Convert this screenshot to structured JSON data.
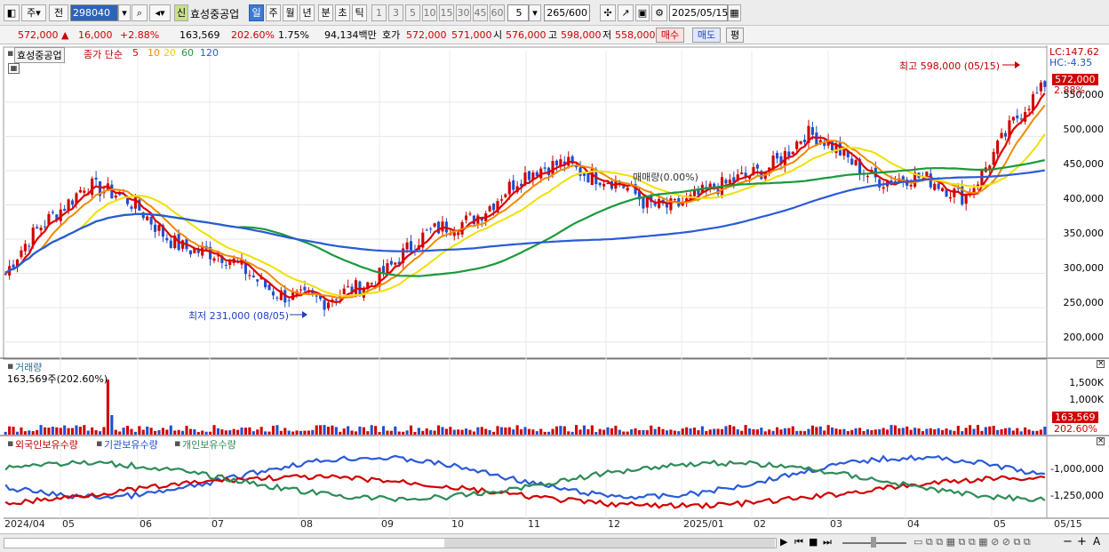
{
  "toolbar": {
    "period_type": "주",
    "compare": "전",
    "code": "298040",
    "credit_badge": "신",
    "name": "효성중공업",
    "periods": [
      "일",
      "주",
      "월",
      "년",
      "분",
      "초",
      "틱"
    ],
    "active_period": "일",
    "intervals": [
      "1",
      "3",
      "5",
      "10",
      "15",
      "30",
      "45",
      "60"
    ],
    "interval_input": "5",
    "count": "265",
    "count_total": "/600",
    "date": "2025/05/15"
  },
  "quote": {
    "price": "572,000",
    "change": "16,000",
    "change_pct": "+2.88%",
    "volume": "163,569",
    "volume_ratio": "202.60%",
    "turnover": "1.75%",
    "amount": "94,134백만",
    "quote_label": "호가",
    "ask": "572,000",
    "bid": "571,000",
    "open_label": "시",
    "open": "576,000",
    "high_label": "고",
    "high": "598,000",
    "low_label": "저",
    "low": "558,000",
    "buy_label": "매수",
    "sell_label": "매도",
    "eval_label": "평"
  },
  "price_panel": {
    "stock_tag": "효성중공업",
    "ma_label": "종가 단순",
    "ma_periods": [
      "5",
      "10",
      "20",
      "60",
      "120"
    ],
    "lc": "LC:147.62",
    "hc": "HC:-4.35",
    "price_tag": "572,000",
    "pct_tag": "2.88%",
    "high_annotation": "최고 598,000 (05/15)",
    "low_annotation": "최저 231,000 (08/05)",
    "mid_annotation": "매매량(0.00%)",
    "y_ticks": [
      "550,000",
      "500,000",
      "450,000",
      "400,000",
      "350,000",
      "300,000",
      "250,000",
      "200,000"
    ]
  },
  "volume_panel": {
    "title": "거래량",
    "current": "163,569주(202.60%)",
    "y_ticks": [
      "1,500K",
      "1,000K"
    ],
    "tag_value": "163,569",
    "tag_pct": "202.60%"
  },
  "holding_panel": {
    "legend": [
      "외국인보유수량",
      "기관보유수량",
      "개인보유수량"
    ],
    "y_ticks": [
      "-1,000,000",
      "-1,250,000"
    ]
  },
  "x_axis": [
    "2024/04",
    "05",
    "06",
    "07",
    "08",
    "09",
    "10",
    "11",
    "12",
    "2025/01",
    "02",
    "03",
    "04",
    "05",
    "05/15"
  ],
  "colors": {
    "up": "#d00000",
    "down": "#1f4fd0",
    "ma5": "#e00000",
    "ma10": "#f08a00",
    "ma20": "#f0e000",
    "ma60": "#1a9a3a",
    "ma120": "#2a5ad8",
    "foreign": "#2a5ad8",
    "institution": "#d00000",
    "individual": "#2e8b57"
  },
  "chart_data": {
    "type": "candlestick",
    "y_range": [
      175000,
      625000
    ],
    "monthly_path": [
      {
        "month": "2024/04",
        "close": 300000
      },
      {
        "month": "05",
        "close": 440000
      },
      {
        "month": "06",
        "close": 360000
      },
      {
        "month": "07",
        "close": 300000
      },
      {
        "month": "08",
        "close": 250000
      },
      {
        "month": "09",
        "close": 330000
      },
      {
        "month": "10",
        "close": 400000
      },
      {
        "month": "11",
        "close": 470000
      },
      {
        "month": "12",
        "close": 400000
      },
      {
        "month": "2025/01",
        "close": 420000
      },
      {
        "month": "02",
        "close": 500000
      },
      {
        "month": "03",
        "close": 440000
      },
      {
        "month": "04",
        "close": 420000
      },
      {
        "month": "05",
        "close": 572000
      }
    ],
    "last_close": 572000,
    "high": 598000,
    "low": 231000
  }
}
